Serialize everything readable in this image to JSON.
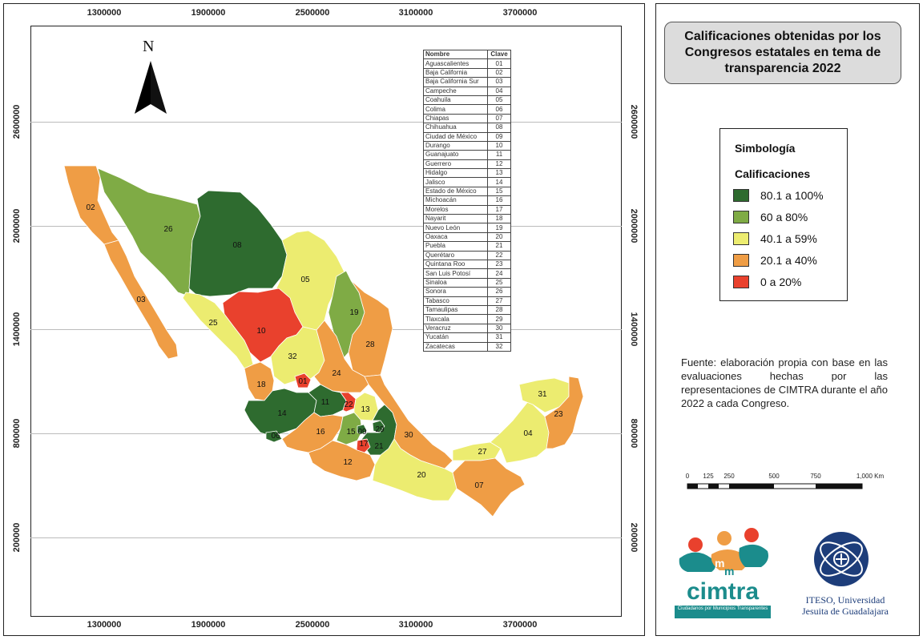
{
  "title": "Calificaciones obtenidas por los Congresos estatales en tema de transparencia 2022",
  "north_label": "N",
  "x_ticks": [
    "1300000",
    "1900000",
    "2500000",
    "3100000",
    "3700000"
  ],
  "y_ticks": [
    "2600000",
    "2000000",
    "1400000",
    "800000",
    "200000"
  ],
  "key_table": {
    "headers": [
      "Nombre",
      "Clave"
    ],
    "rows": [
      [
        "Aguascalientes",
        "01"
      ],
      [
        "Baja California",
        "02"
      ],
      [
        "Baja California Sur",
        "03"
      ],
      [
        "Campeche",
        "04"
      ],
      [
        "Coahuila",
        "05"
      ],
      [
        "Colima",
        "06"
      ],
      [
        "Chiapas",
        "07"
      ],
      [
        "Chihuahua",
        "08"
      ],
      [
        "Ciudad de México",
        "09"
      ],
      [
        "Durango",
        "10"
      ],
      [
        "Guanajuato",
        "11"
      ],
      [
        "Guerrero",
        "12"
      ],
      [
        "Hidalgo",
        "13"
      ],
      [
        "Jalisco",
        "14"
      ],
      [
        "Estado de México",
        "15"
      ],
      [
        "Michoacán",
        "16"
      ],
      [
        "Morelos",
        "17"
      ],
      [
        "Nayarit",
        "18"
      ],
      [
        "Nuevo León",
        "19"
      ],
      [
        "Oaxaca",
        "20"
      ],
      [
        "Puebla",
        "21"
      ],
      [
        "Querétaro",
        "22"
      ],
      [
        "Quintana Roo",
        "23"
      ],
      [
        "San Luis Potosí",
        "24"
      ],
      [
        "Sinaloa",
        "25"
      ],
      [
        "Sonora",
        "26"
      ],
      [
        "Tabasco",
        "27"
      ],
      [
        "Tamaulipas",
        "28"
      ],
      [
        "Tlaxcala",
        "29"
      ],
      [
        "Veracruz",
        "30"
      ],
      [
        "Yucatán",
        "31"
      ],
      [
        "Zacatecas",
        "32"
      ]
    ]
  },
  "legend": {
    "heading": "Simbología",
    "subheading": "Calificaciones",
    "items": [
      {
        "label": "80.1 a 100%",
        "color": "#2e6b2f"
      },
      {
        "label": "60 a 80%",
        "color": "#7fab45"
      },
      {
        "label": "40.1 a 59%",
        "color": "#ecec70"
      },
      {
        "label": "20.1 a 40%",
        "color": "#ef9d45"
      },
      {
        "label": "0 a 20%",
        "color": "#e9412d"
      }
    ]
  },
  "source_text": "Fuente: elaboración propia con base en las evaluaciones hechas por las representaciones de CIMTRA durante el año 2022 a cada Congreso.",
  "scale_labels": [
    "0",
    "125",
    "250",
    "500",
    "750",
    "1,000 Km"
  ],
  "state_categories": {
    "01": "0 a 20%",
    "02": "20.1 a 40%",
    "03": "20.1 a 40%",
    "04": "40.1 a 59%",
    "05": "40.1 a 59%",
    "06": "80.1 a 100%",
    "07": "20.1 a 40%",
    "08": "80.1 a 100%",
    "09": "80.1 a 100%",
    "10": "0 a 20%",
    "11": "80.1 a 100%",
    "12": "20.1 a 40%",
    "13": "40.1 a 59%",
    "14": "80.1 a 100%",
    "15": "60 a 80%",
    "16": "20.1 a 40%",
    "17": "0 a 20%",
    "18": "20.1 a 40%",
    "19": "60 a 80%",
    "20": "40.1 a 59%",
    "21": "80.1 a 100%",
    "22": "0 a 20%",
    "23": "20.1 a 40%",
    "24": "20.1 a 40%",
    "25": "40.1 a 59%",
    "26": "60 a 80%",
    "27": "40.1 a 59%",
    "28": "20.1 a 40%",
    "29": "80.1 a 100%",
    "30": "20.1 a 40%",
    "31": "40.1 a 59%",
    "32": "40.1 a 59%"
  },
  "logos": {
    "cimtra_text": "cimtra",
    "cimtra_sub": "Ciudadanos por Municipios Transparentes",
    "iteso_line1": "ITESO, Universidad",
    "iteso_line2": "Jesuita de Guadalajara"
  }
}
